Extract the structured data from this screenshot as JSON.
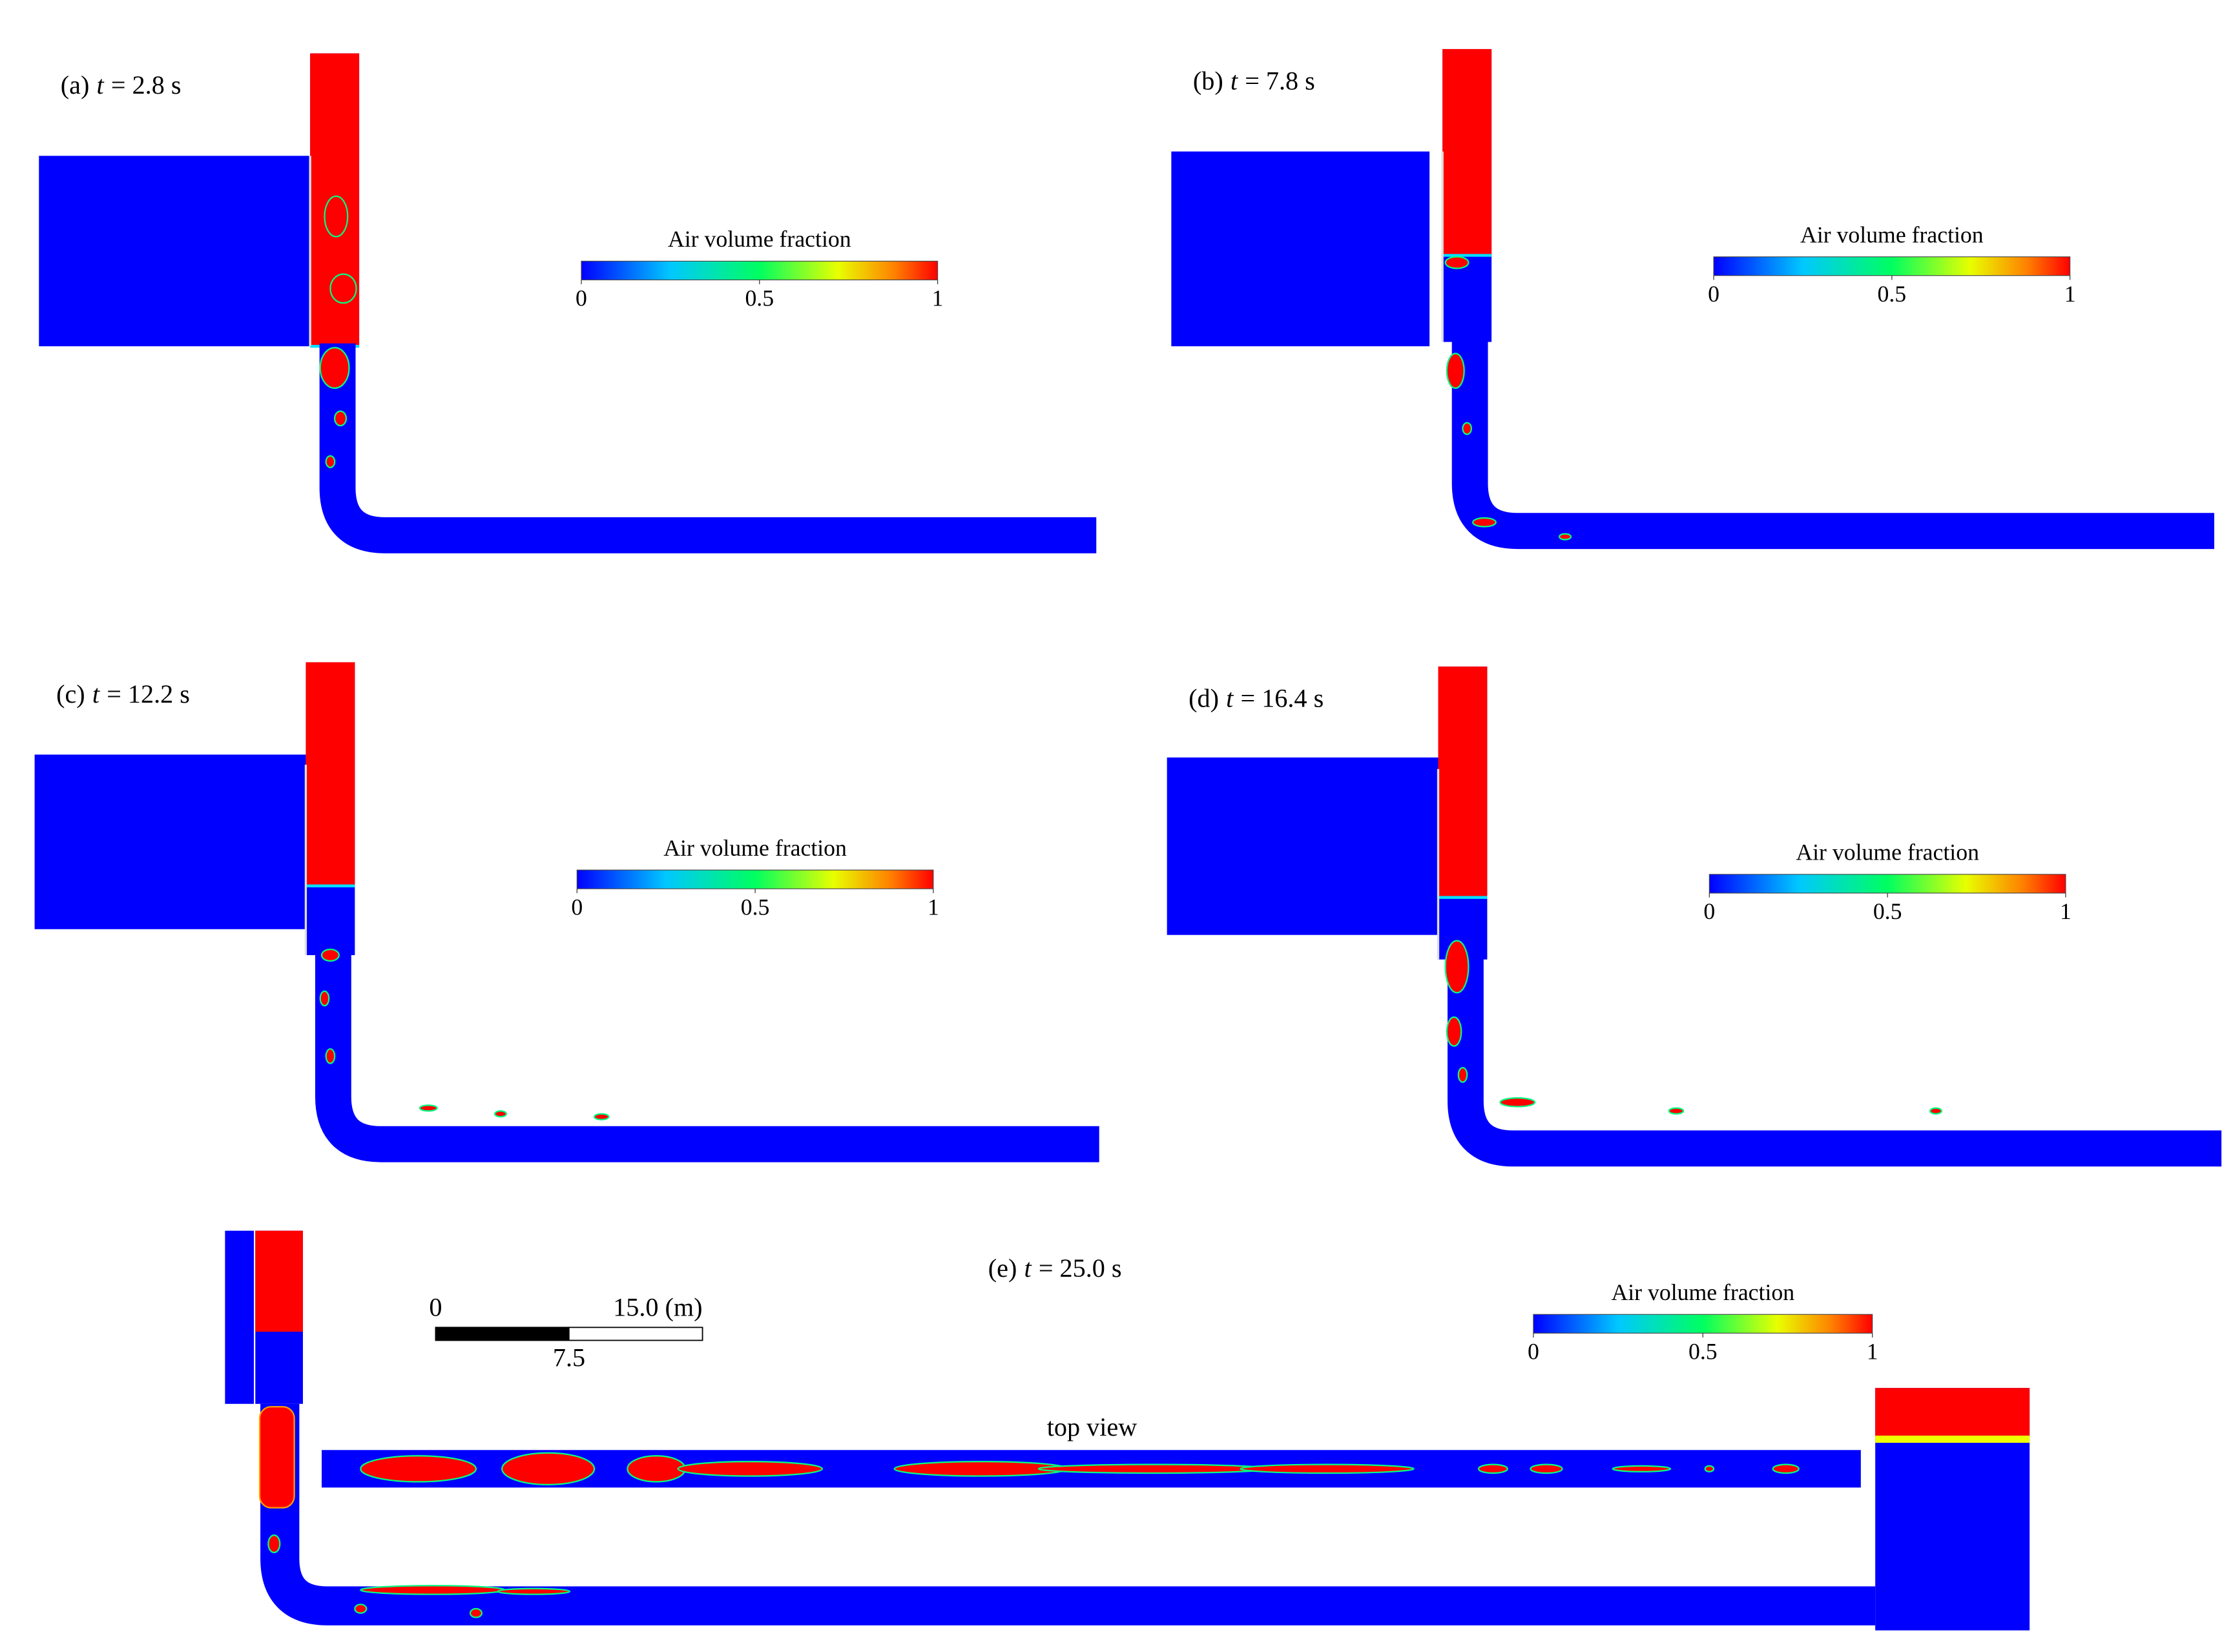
{
  "panels": [
    {
      "label": {
        "tag": "(a)",
        "symbol": "t",
        "rest": "= 2.8 s"
      }
    },
    {
      "label": {
        "tag": "(b)",
        "symbol": "t",
        "rest": "= 7.8 s"
      }
    },
    {
      "label": {
        "tag": "(c)",
        "symbol": "t",
        "rest": "= 12.2 s"
      }
    },
    {
      "label": {
        "tag": "(d)",
        "symbol": "t",
        "rest": "= 16.4 s"
      }
    },
    {
      "label": {
        "tag": "(e)",
        "symbol": "t",
        "rest": "= 25.0 s"
      },
      "view_label": "top view"
    }
  ],
  "colorbar": {
    "title": "Air volume fraction",
    "range": [
      0,
      1
    ],
    "ticks": [
      0,
      0.5,
      1
    ]
  },
  "scale_bar": {
    "length": 15,
    "ticks": [
      {
        "value": 0,
        "label": "0"
      },
      {
        "value": 7.5,
        "label": "7.5"
      },
      {
        "value": 15,
        "label": "15.0 (m)"
      }
    ]
  }
}
